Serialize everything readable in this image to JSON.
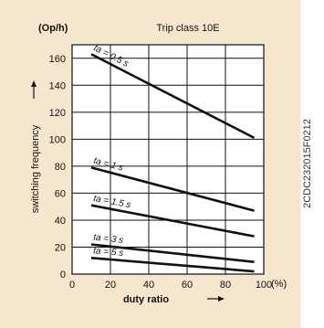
{
  "figure": {
    "unit_label": "(Op/h)",
    "title": "Trip class 10E",
    "document_code": "2CDC232015F0212"
  },
  "colors": {
    "background": "#f6e6cd",
    "plot_area": "#ffffff",
    "lines": "#111111",
    "text": "#111111"
  },
  "chart_data": {
    "type": "line",
    "title": "Trip class 10E",
    "xlabel": "duty ratio",
    "ylabel": "switching frequency",
    "x_unit": "(%)",
    "y_unit": "(Op/h)",
    "xlim": [
      0,
      100
    ],
    "ylim": [
      0,
      170
    ],
    "grid": true,
    "x_ticks": [
      "0",
      "20",
      "40",
      "60",
      "80",
      "100"
    ],
    "y_ticks": [
      "0",
      "20",
      "40",
      "60",
      "80",
      "100",
      "120",
      "140",
      "160"
    ],
    "series": [
      {
        "name": "ta = 0.5 s",
        "x": [
          10,
          95
        ],
        "y": [
          163,
          101
        ]
      },
      {
        "name": "ta = 1 s",
        "x": [
          10,
          95
        ],
        "y": [
          79,
          47
        ]
      },
      {
        "name": "ta = 1.5 s",
        "x": [
          10,
          95
        ],
        "y": [
          51,
          28
        ]
      },
      {
        "name": "ta = 3 s",
        "x": [
          10,
          95
        ],
        "y": [
          22,
          9
        ]
      },
      {
        "name": "ta = 5 s",
        "x": [
          10,
          95
        ],
        "y": [
          12,
          2
        ]
      }
    ]
  }
}
